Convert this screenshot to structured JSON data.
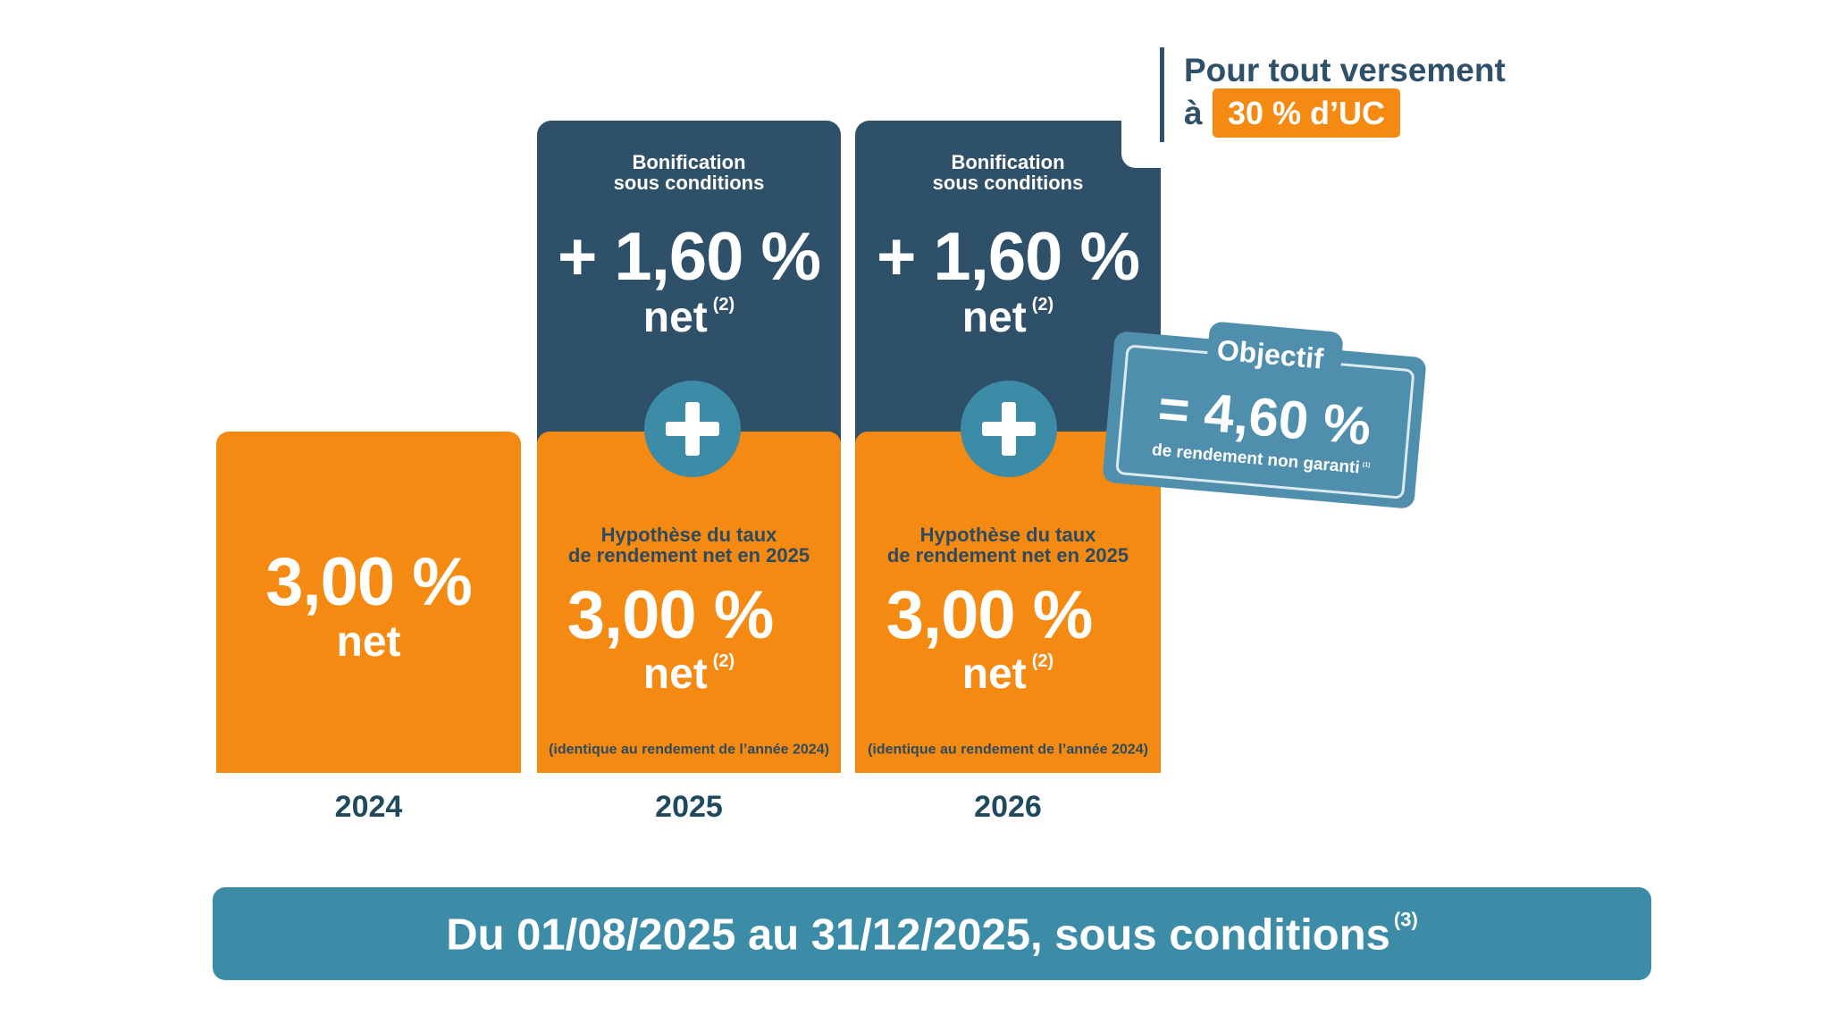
{
  "columns": [
    {
      "year": "2024",
      "base": {
        "rate": "3,00 %",
        "net": "net"
      }
    },
    {
      "year": "2025",
      "bonus": {
        "label_lines": [
          "Bonification",
          "sous conditions"
        ],
        "rate": "+ 1,60 %",
        "net": "net",
        "note": "(2)"
      },
      "base": {
        "label_lines": [
          "Hypothèse du taux",
          "de rendement net en 2025"
        ],
        "rate": "3,00 %",
        "net": "net",
        "note": "(2)",
        "footnote": "(identique au rendement de l’année 2024)"
      }
    },
    {
      "year": "2026",
      "bonus": {
        "label_lines": [
          "Bonification",
          "sous conditions"
        ],
        "rate": "+ 1,60 %",
        "net": "net",
        "note": "(2)"
      },
      "base": {
        "label_lines": [
          "Hypothèse du taux",
          "de rendement net en 2025"
        ],
        "rate": "3,00 %",
        "net": "net",
        "note": "(2)",
        "footnote": "(identique au rendement de l’année 2024)"
      }
    }
  ],
  "callout": {
    "line1": "Pour tout versement",
    "prefix": "à",
    "highlight": "30 % d’UC"
  },
  "objective": {
    "title": "Objectif",
    "value": "= 4,60 %",
    "caption": "de rendement non garanti",
    "note": "(1)"
  },
  "banner": {
    "text": "Du 01/08/2025 au 31/12/2025, sous conditions",
    "note": "(3)"
  }
}
